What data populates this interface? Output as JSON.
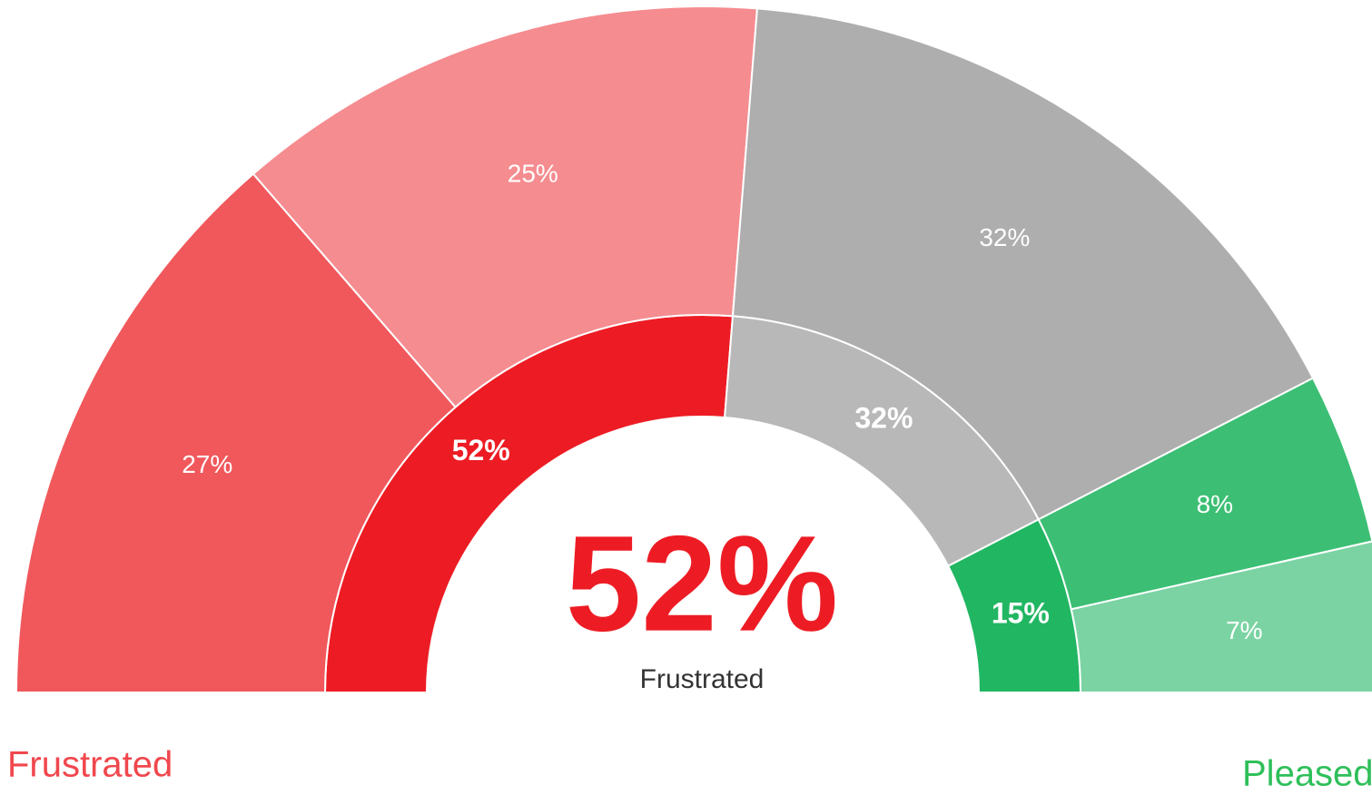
{
  "chart_data": {
    "type": "sunburst",
    "rings": [
      {
        "values": [
          52,
          32,
          15
        ],
        "value_labels": [
          "52%",
          "32%",
          "15%"
        ],
        "colors": [
          "#ed1c24",
          "#b8b8b8",
          "#21b662"
        ]
      },
      {
        "values": [
          27,
          25,
          32,
          8,
          7
        ],
        "value_labels": [
          "27%",
          "25%",
          "32%",
          "8%",
          "7%"
        ],
        "colors": [
          "#f0585c",
          "#f58c90",
          "#aeaeae",
          "#3cbf74",
          "#7bd3a3"
        ]
      }
    ],
    "center_text": "52%",
    "center_caption": "Frustrated",
    "scale_labels": [
      "Frustrated",
      "Pleased"
    ]
  }
}
